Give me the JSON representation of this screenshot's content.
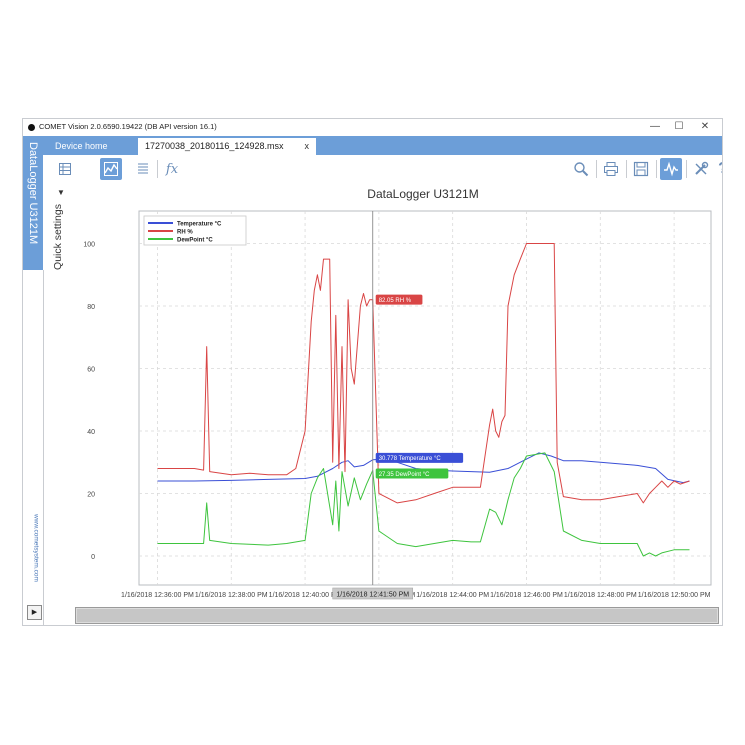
{
  "window": {
    "title": "COMET Vision 2.0.6590.19422 (DB API version 16.1)",
    "minimize": "—",
    "maximize": "☐",
    "close": "✕"
  },
  "tabs": {
    "home": "Device home",
    "file": "17270038_20180116_124928.msx",
    "file_close": "x"
  },
  "sidebar": {
    "device_title": "DataLogger U3121M",
    "quick_settings": "Quick settings",
    "website": "www.cometsystem.com",
    "expand": "▶"
  },
  "toolbar": {
    "left": [
      "table-view",
      "graph-view",
      "list-view",
      "function"
    ],
    "function_label": "fx",
    "right": [
      "zoom",
      "print",
      "save",
      "analyze",
      "settings",
      "help"
    ],
    "help_label": "?"
  },
  "colors": {
    "temperature": "#3a4fd6",
    "rh": "#d94545",
    "dewpoint": "#3ec43e",
    "accent": "#6c9ed8"
  },
  "chart_data": {
    "type": "line",
    "title": "DataLogger U3121M",
    "xlabel": "",
    "ylabel": "",
    "ylim": [
      -5,
      105
    ],
    "yticks": [
      0,
      20,
      40,
      60,
      80,
      100
    ],
    "xlim": [
      "12:35:30",
      "12:51:00"
    ],
    "xtick_labels": [
      "1/16/2018 12:36:00 PM",
      "1/16/2018 12:38:00 PM",
      "1/16/2018 12:40:00 PM",
      "1/16/2018 12:42:00 PM",
      "1/16/2018 12:44:00 PM",
      "1/16/2018 12:46:00 PM",
      "1/16/2018 12:48:00 PM",
      "1/16/2018 12:50:00 PM"
    ],
    "xtick_times": [
      "12:36:00",
      "12:38:00",
      "12:40:00",
      "12:42:00",
      "12:44:00",
      "12:46:00",
      "12:48:00",
      "12:50:00"
    ],
    "legend_position": "top-left",
    "grid": true,
    "crosshair": {
      "time_label": "1/16/2018 12:41:50 PM",
      "time": "12:41:50",
      "readouts": [
        {
          "value": "82.05",
          "label": "RH %",
          "series": "RH %",
          "y": 82.05
        },
        {
          "value": "30.778",
          "label": "Temperature °C",
          "series": "Temperature °C",
          "y": 30.778
        },
        {
          "value": "27.35",
          "label": "DewPoint °C",
          "series": "DewPoint °C",
          "y": 27.35
        }
      ]
    },
    "series": [
      {
        "name": "Temperature °C",
        "color": "#3a4fd6",
        "points": [
          [
            "12:36:00",
            24
          ],
          [
            "12:37:00",
            24
          ],
          [
            "12:38:00",
            24.2
          ],
          [
            "12:39:00",
            24.5
          ],
          [
            "12:40:00",
            24.8
          ],
          [
            "12:40:20",
            25.5
          ],
          [
            "12:40:45",
            28
          ],
          [
            "12:41:00",
            30
          ],
          [
            "12:41:10",
            30.5
          ],
          [
            "12:41:20",
            28.5
          ],
          [
            "12:41:35",
            29
          ],
          [
            "12:41:50",
            30.78
          ],
          [
            "12:42:10",
            31
          ],
          [
            "12:42:30",
            30
          ],
          [
            "12:43:00",
            28
          ],
          [
            "12:43:30",
            27.5
          ],
          [
            "12:44:00",
            27.2
          ],
          [
            "12:44:30",
            27
          ],
          [
            "12:45:00",
            26.8
          ],
          [
            "12:45:30",
            28
          ],
          [
            "12:46:00",
            31
          ],
          [
            "12:46:20",
            33
          ],
          [
            "12:46:40",
            32
          ],
          [
            "12:47:00",
            30.5
          ],
          [
            "12:47:30",
            30.5
          ],
          [
            "12:48:00",
            30
          ],
          [
            "12:49:00",
            29
          ],
          [
            "12:49:30",
            28
          ],
          [
            "12:49:50",
            24.5
          ],
          [
            "12:50:15",
            23.5
          ],
          [
            "12:50:25",
            24
          ]
        ]
      },
      {
        "name": "RH %",
        "color": "#d94545",
        "points": [
          [
            "12:36:00",
            28
          ],
          [
            "12:37:00",
            28
          ],
          [
            "12:37:15",
            27.5
          ],
          [
            "12:37:20",
            67
          ],
          [
            "12:37:25",
            27
          ],
          [
            "12:38:00",
            26
          ],
          [
            "12:38:30",
            26.5
          ],
          [
            "12:39:00",
            26
          ],
          [
            "12:39:30",
            26
          ],
          [
            "12:39:45",
            28
          ],
          [
            "12:40:00",
            40
          ],
          [
            "12:40:10",
            75
          ],
          [
            "12:40:15",
            85
          ],
          [
            "12:40:20",
            90
          ],
          [
            "12:40:25",
            85
          ],
          [
            "12:40:30",
            95
          ],
          [
            "12:40:40",
            95
          ],
          [
            "12:40:45",
            30
          ],
          [
            "12:40:50",
            77
          ],
          [
            "12:40:55",
            28
          ],
          [
            "12:41:00",
            67
          ],
          [
            "12:41:05",
            27
          ],
          [
            "12:41:10",
            82
          ],
          [
            "12:41:15",
            60
          ],
          [
            "12:41:20",
            55
          ],
          [
            "12:41:30",
            80
          ],
          [
            "12:41:35",
            84
          ],
          [
            "12:41:40",
            80
          ],
          [
            "12:41:45",
            82
          ],
          [
            "12:41:50",
            82.05
          ],
          [
            "12:42:00",
            20
          ],
          [
            "12:42:30",
            17
          ],
          [
            "12:43:00",
            18
          ],
          [
            "12:43:30",
            20
          ],
          [
            "12:44:00",
            22
          ],
          [
            "12:44:30",
            22
          ],
          [
            "12:44:45",
            22
          ],
          [
            "12:45:00",
            42
          ],
          [
            "12:45:05",
            47
          ],
          [
            "12:45:10",
            40
          ],
          [
            "12:45:15",
            38
          ],
          [
            "12:45:20",
            43
          ],
          [
            "12:45:25",
            45
          ],
          [
            "12:45:30",
            80
          ],
          [
            "12:45:40",
            90
          ],
          [
            "12:45:50",
            95
          ],
          [
            "12:46:00",
            100
          ],
          [
            "12:46:30",
            100
          ],
          [
            "12:46:45",
            100
          ],
          [
            "12:46:50",
            30
          ],
          [
            "12:47:00",
            19
          ],
          [
            "12:47:30",
            18
          ],
          [
            "12:48:00",
            18
          ],
          [
            "12:48:30",
            19
          ],
          [
            "12:49:00",
            20
          ],
          [
            "12:49:10",
            17
          ],
          [
            "12:49:20",
            20
          ],
          [
            "12:49:30",
            22
          ],
          [
            "12:49:40",
            24
          ],
          [
            "12:49:50",
            22
          ],
          [
            "12:50:00",
            24
          ],
          [
            "12:50:10",
            23
          ],
          [
            "12:50:25",
            24
          ]
        ]
      },
      {
        "name": "DewPoint °C",
        "color": "#3ec43e",
        "points": [
          [
            "12:36:00",
            4
          ],
          [
            "12:37:00",
            4
          ],
          [
            "12:37:15",
            4
          ],
          [
            "12:37:20",
            17
          ],
          [
            "12:37:25",
            5
          ],
          [
            "12:38:00",
            4
          ],
          [
            "12:39:00",
            3.5
          ],
          [
            "12:39:30",
            4
          ],
          [
            "12:40:00",
            5
          ],
          [
            "12:40:10",
            20
          ],
          [
            "12:40:20",
            25
          ],
          [
            "12:40:30",
            28
          ],
          [
            "12:40:45",
            10
          ],
          [
            "12:40:50",
            24
          ],
          [
            "12:40:55",
            8
          ],
          [
            "12:41:00",
            27
          ],
          [
            "12:41:10",
            16
          ],
          [
            "12:41:20",
            25
          ],
          [
            "12:41:30",
            18
          ],
          [
            "12:41:40",
            23
          ],
          [
            "12:41:50",
            27.35
          ],
          [
            "12:42:00",
            8
          ],
          [
            "12:42:30",
            4
          ],
          [
            "12:43:00",
            3
          ],
          [
            "12:43:30",
            4
          ],
          [
            "12:44:00",
            5
          ],
          [
            "12:44:30",
            4.5
          ],
          [
            "12:44:45",
            4.5
          ],
          [
            "12:45:00",
            15
          ],
          [
            "12:45:10",
            14
          ],
          [
            "12:45:20",
            10
          ],
          [
            "12:45:25",
            14
          ],
          [
            "12:45:30",
            18
          ],
          [
            "12:45:40",
            25
          ],
          [
            "12:45:50",
            28
          ],
          [
            "12:46:00",
            32
          ],
          [
            "12:46:30",
            33
          ],
          [
            "12:46:45",
            27
          ],
          [
            "12:47:00",
            8
          ],
          [
            "12:47:30",
            5
          ],
          [
            "12:48:00",
            4
          ],
          [
            "12:49:00",
            4
          ],
          [
            "12:49:10",
            0
          ],
          [
            "12:49:20",
            1
          ],
          [
            "12:49:30",
            0
          ],
          [
            "12:49:40",
            1
          ],
          [
            "12:50:00",
            2
          ],
          [
            "12:50:25",
            2
          ]
        ]
      }
    ]
  }
}
